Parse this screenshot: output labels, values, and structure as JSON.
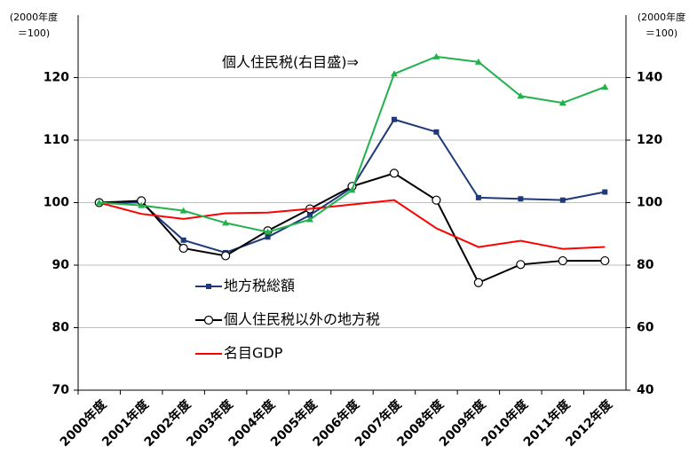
{
  "chart_data": {
    "type": "line",
    "y_unit": [
      "(2000年度",
      "＝100)"
    ],
    "y2_unit": [
      "(2000年度",
      "＝100)"
    ],
    "annotation": "個人住民税(右目盛)⇒",
    "categories": [
      "2000年度",
      "2001年度",
      "2002年度",
      "2003年度",
      "2004年度",
      "2005年度",
      "2006年度",
      "2007年度",
      "2008年度",
      "2009年度",
      "2010年度",
      "2011年度",
      "2012年度"
    ],
    "series": [
      {
        "name": "地方税総額",
        "color": "#1f3a7a",
        "marker": "square",
        "legend": true,
        "values": [
          100,
          100.0,
          94.0,
          92.0,
          94.5,
          98.0,
          102.4,
          113.3,
          111.3,
          100.8,
          100.6,
          100.4,
          101.7
        ]
      },
      {
        "name": "個人住民税以外の地方税",
        "color": "#000000",
        "marker": "circle",
        "legend": true,
        "values": [
          100,
          100.3,
          92.7,
          91.5,
          95.5,
          99.0,
          102.6,
          104.7,
          100.4,
          87.2,
          90.1,
          90.7,
          90.7
        ]
      },
      {
        "name": "名目GDP",
        "color": "#ff0000",
        "marker": "none",
        "legend": true,
        "values": [
          100,
          98.2,
          97.4,
          98.3,
          98.4,
          99.0,
          99.7,
          100.4,
          95.9,
          92.9,
          93.9,
          92.6,
          92.9
        ]
      },
      {
        "color": "#22b14c",
        "marker": "triangle",
        "axis": "y2",
        "legend": false,
        "values": [
          100,
          99.1,
          97.4,
          93.5,
          90.6,
          94.6,
          104.0,
          141.2,
          146.7,
          145.0,
          134.1,
          131.9,
          137.0
        ]
      }
    ],
    "ylim": [
      70,
      130
    ],
    "yticks": [
      70,
      80,
      90,
      100,
      110,
      120
    ],
    "y2lim": [
      40,
      160
    ],
    "y2ticks": [
      40,
      60,
      80,
      100,
      120,
      140
    ],
    "grid": true
  }
}
